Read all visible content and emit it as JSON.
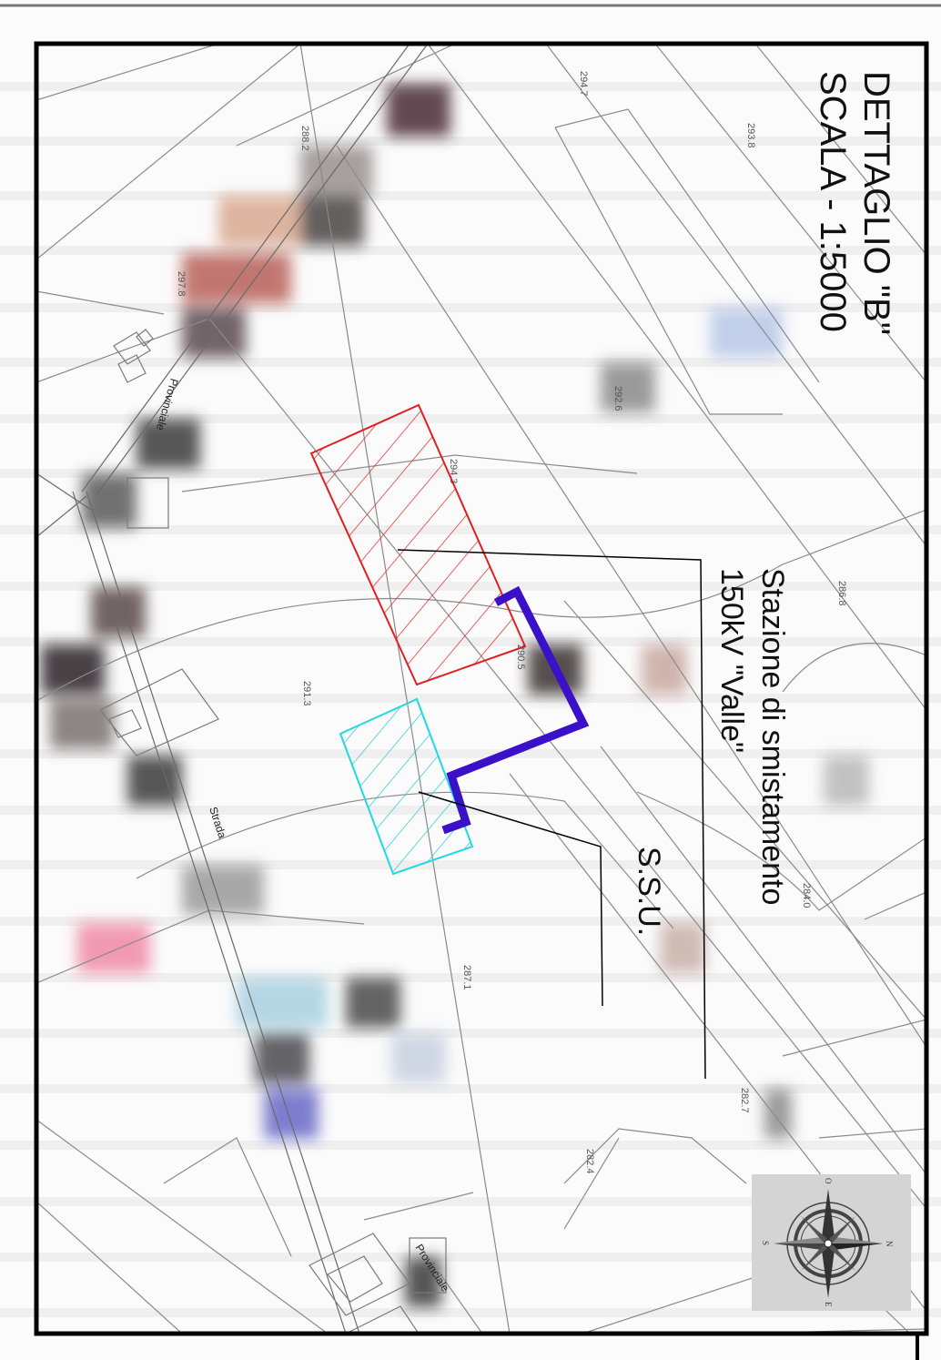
{
  "title": {
    "line1": "DETTAGLIO \"B\"",
    "line2": "SCALA - 1:5000"
  },
  "labels": {
    "station_line1": "Stazione di smistamento",
    "station_line2": "150kV \"Valle\"",
    "ssu": "S.S.U."
  },
  "roads": {
    "provinciale_top": "Provinciale",
    "strada": "Strada",
    "provinciale_bottom": "Provinciale"
  },
  "elevations": [
    "294.7",
    "293.8",
    "288.2",
    "297.8",
    "292.6",
    "294.3",
    "286.8",
    "290.5",
    "291.3",
    "284.0",
    "287.1",
    "282.7",
    "282.4"
  ],
  "compass": {
    "n": "N",
    "s": "S",
    "e": "E",
    "o": "O"
  },
  "colors": {
    "station_area": "#e02020",
    "ssu_area": "#20d8e0",
    "cable_route": "#3a10c8"
  }
}
